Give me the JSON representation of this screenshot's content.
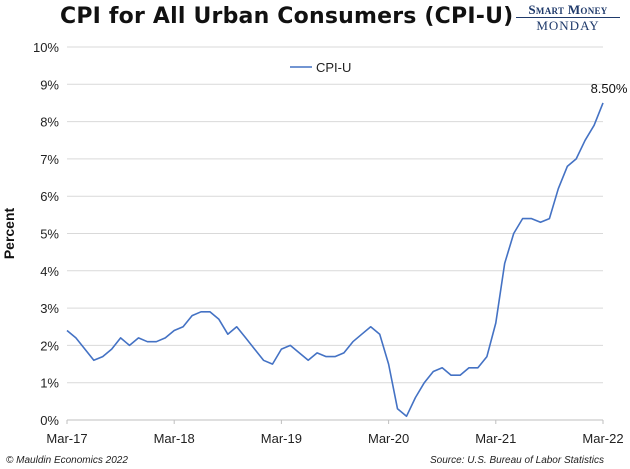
{
  "header": {
    "title": "CPI for All Urban Consumers (CPI-U)"
  },
  "logo": {
    "line1": "Smart Money",
    "line2": "MONDAY"
  },
  "footer": {
    "left": "© Mauldin Economics 2022",
    "right": "Source: U.S. Bureau of Labor Statistics"
  },
  "colors": {
    "line": "#4472c4",
    "grid": "#d9d9d9",
    "axis": "#bfbfbf"
  },
  "chart_data": {
    "type": "line",
    "title": "CPI for All Urban Consumers (CPI-U)",
    "xlabel": "",
    "ylabel": "Percent",
    "ylim": [
      0,
      10
    ],
    "y_ticks": [
      "0%",
      "1%",
      "2%",
      "3%",
      "4%",
      "5%",
      "6%",
      "7%",
      "8%",
      "9%",
      "10%"
    ],
    "x_ticks": [
      "Mar-17",
      "Mar-18",
      "Mar-19",
      "Mar-20",
      "Mar-21",
      "Mar-22"
    ],
    "grid": true,
    "legend_position": "top-center",
    "x": [
      "Mar-17",
      "Apr-17",
      "May-17",
      "Jun-17",
      "Jul-17",
      "Aug-17",
      "Sep-17",
      "Oct-17",
      "Nov-17",
      "Dec-17",
      "Jan-18",
      "Feb-18",
      "Mar-18",
      "Apr-18",
      "May-18",
      "Jun-18",
      "Jul-18",
      "Aug-18",
      "Sep-18",
      "Oct-18",
      "Nov-18",
      "Dec-18",
      "Jan-19",
      "Feb-19",
      "Mar-19",
      "Apr-19",
      "May-19",
      "Jun-19",
      "Jul-19",
      "Aug-19",
      "Sep-19",
      "Oct-19",
      "Nov-19",
      "Dec-19",
      "Jan-20",
      "Feb-20",
      "Mar-20",
      "Apr-20",
      "May-20",
      "Jun-20",
      "Jul-20",
      "Aug-20",
      "Sep-20",
      "Oct-20",
      "Nov-20",
      "Dec-20",
      "Jan-21",
      "Feb-21",
      "Mar-21",
      "Apr-21",
      "May-21",
      "Jun-21",
      "Jul-21",
      "Aug-21",
      "Sep-21",
      "Oct-21",
      "Nov-21",
      "Dec-21",
      "Jan-22",
      "Feb-22",
      "Mar-22"
    ],
    "series": [
      {
        "name": "CPI-U",
        "values": [
          2.4,
          2.2,
          1.9,
          1.6,
          1.7,
          1.9,
          2.2,
          2.0,
          2.2,
          2.1,
          2.1,
          2.2,
          2.4,
          2.5,
          2.8,
          2.9,
          2.9,
          2.7,
          2.3,
          2.5,
          2.2,
          1.9,
          1.6,
          1.5,
          1.9,
          2.0,
          1.8,
          1.6,
          1.8,
          1.7,
          1.7,
          1.8,
          2.1,
          2.3,
          2.5,
          2.3,
          1.5,
          0.3,
          0.1,
          0.6,
          1.0,
          1.3,
          1.4,
          1.2,
          1.2,
          1.4,
          1.4,
          1.7,
          2.6,
          4.2,
          5.0,
          5.4,
          5.4,
          5.3,
          5.4,
          6.2,
          6.8,
          7.0,
          7.5,
          7.9,
          8.5
        ]
      }
    ],
    "annotations": [
      {
        "x": "Mar-22",
        "text": "8.50%"
      }
    ]
  }
}
